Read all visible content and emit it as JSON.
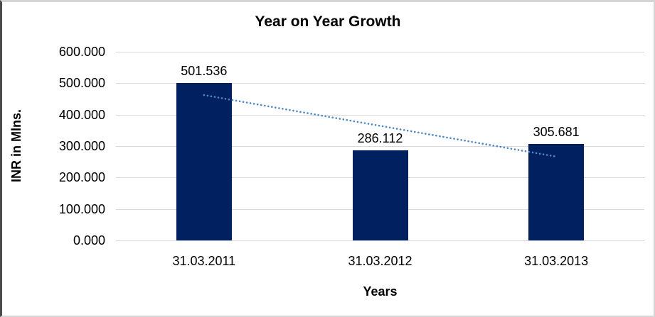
{
  "chart_data": {
    "type": "bar",
    "title": "Year on Year Growth",
    "xlabel": "Years",
    "ylabel": "INR in Mlns.",
    "categories": [
      "31.03.2011",
      "31.03.2012",
      "31.03.2013"
    ],
    "series": [
      {
        "name": "INR in Mlns.",
        "values": [
          501.536,
          286.112,
          305.681
        ]
      }
    ],
    "data_labels": [
      "501.536",
      "286.112",
      "305.681"
    ],
    "ylim": [
      0,
      600
    ],
    "ytick_step": 100,
    "yticks": [
      {
        "value": 600,
        "label": "600.000"
      },
      {
        "value": 500,
        "label": "500.000"
      },
      {
        "value": 400,
        "label": "400.000"
      },
      {
        "value": 300,
        "label": "300.000"
      },
      {
        "value": 200,
        "label": "200.000"
      },
      {
        "value": 100,
        "label": "100.000"
      },
      {
        "value": 0,
        "label": "0.000"
      }
    ],
    "grid": true,
    "legend": "none",
    "colors": {
      "bar_fill": "#002060",
      "trendline": "#4e87c5",
      "gridline": "#d9d9d9",
      "text": "#000000"
    },
    "trendline": {
      "type": "linear",
      "style": "dotted",
      "start_value": 462.3,
      "end_value": 266.6
    }
  }
}
